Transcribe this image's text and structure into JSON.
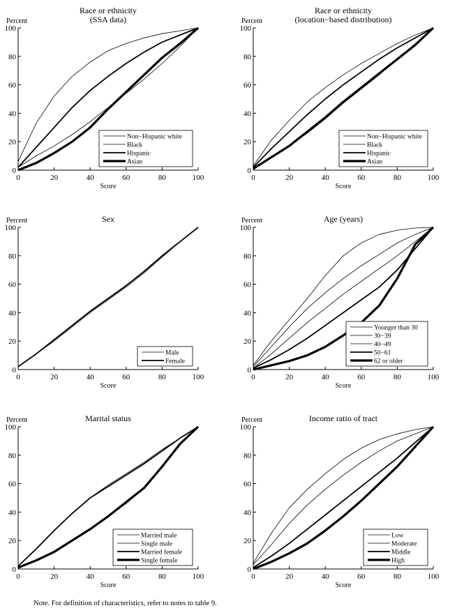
{
  "note": "Note. For definition of characteristics, refer to notes to table 9.",
  "chart_data": [
    {
      "type": "line",
      "title": [
        "Race or ethnicity",
        "(SSA data)"
      ],
      "xlabel": "Score",
      "ylabel": "Percent",
      "xlim": [
        0,
        100
      ],
      "ylim": [
        0,
        100
      ],
      "xticks": [
        0,
        20,
        40,
        60,
        80,
        100
      ],
      "yticks": [
        0,
        20,
        40,
        60,
        80,
        100
      ],
      "legend": "bottom-right",
      "grid": false,
      "x": [
        0,
        10,
        20,
        30,
        40,
        50,
        60,
        70,
        80,
        90,
        100
      ],
      "series": [
        {
          "name": "Non−Hispanic white",
          "values": [
            6,
            33,
            52,
            66,
            76,
            84,
            89,
            93,
            96,
            98,
            100
          ],
          "weight": "thin"
        },
        {
          "name": "Black",
          "values": [
            2,
            10,
            17,
            25,
            34,
            44,
            54,
            64,
            75,
            87,
            100
          ],
          "weight": "thin"
        },
        {
          "name": "Hispanic",
          "values": [
            2,
            16,
            30,
            44,
            56,
            66,
            75,
            83,
            90,
            95,
            100
          ],
          "weight": "medium"
        },
        {
          "name": "Asian",
          "values": [
            0,
            5,
            12,
            20,
            30,
            43,
            55,
            67,
            79,
            89,
            100
          ],
          "weight": "thick"
        }
      ]
    },
    {
      "type": "line",
      "title": [
        "Race or ethnicity",
        "(location−based distribution)"
      ],
      "xlabel": "Score",
      "ylabel": "Percent",
      "xlim": [
        0,
        100
      ],
      "ylim": [
        0,
        100
      ],
      "xticks": [
        0,
        20,
        40,
        60,
        80,
        100
      ],
      "yticks": [
        0,
        20,
        40,
        60,
        80,
        100
      ],
      "legend": "bottom-right",
      "grid": false,
      "x": [
        0,
        10,
        20,
        30,
        40,
        50,
        60,
        70,
        80,
        90,
        100
      ],
      "series": [
        {
          "name": "Non−Hispanic white",
          "values": [
            3,
            21,
            35,
            48,
            58,
            67,
            75,
            82,
            89,
            95,
            100
          ],
          "weight": "thin"
        },
        {
          "name": "Black",
          "values": [
            1,
            9,
            17,
            26,
            36,
            47,
            57,
            67,
            78,
            89,
            100
          ],
          "weight": "thin"
        },
        {
          "name": "Hispanic",
          "values": [
            2,
            15,
            27,
            39,
            50,
            60,
            69,
            78,
            86,
            93,
            100
          ],
          "weight": "medium"
        },
        {
          "name": "Asian",
          "values": [
            1,
            9,
            17,
            27,
            37,
            48,
            58,
            68,
            78,
            88,
            100
          ],
          "weight": "thick"
        }
      ]
    },
    {
      "type": "line",
      "title": [
        "Sex"
      ],
      "xlabel": "Score",
      "ylabel": "Percent",
      "xlim": [
        0,
        100
      ],
      "ylim": [
        0,
        100
      ],
      "xticks": [
        0,
        20,
        40,
        60,
        80,
        100
      ],
      "yticks": [
        0,
        20,
        40,
        60,
        80,
        100
      ],
      "legend": "bottom-right",
      "grid": false,
      "x": [
        0,
        10,
        20,
        30,
        40,
        50,
        60,
        70,
        80,
        90,
        100
      ],
      "series": [
        {
          "name": "Male",
          "values": [
            2,
            11,
            20,
            30,
            40,
            49,
            58,
            68,
            79,
            90,
            100
          ],
          "weight": "thin"
        },
        {
          "name": "Female",
          "values": [
            2,
            11,
            21,
            31,
            41,
            50,
            59,
            69,
            80,
            90,
            100
          ],
          "weight": "medium"
        }
      ]
    },
    {
      "type": "line",
      "title": [
        "Age (years)"
      ],
      "xlabel": "Score",
      "ylabel": "Percent",
      "xlim": [
        0,
        100
      ],
      "ylim": [
        0,
        100
      ],
      "xticks": [
        0,
        20,
        40,
        60,
        80,
        100
      ],
      "yticks": [
        0,
        20,
        40,
        60,
        80,
        100
      ],
      "legend": "bottom-right",
      "grid": false,
      "x": [
        0,
        10,
        20,
        30,
        40,
        50,
        60,
        70,
        80,
        90,
        100
      ],
      "series": [
        {
          "name": "Younger than 30",
          "values": [
            3,
            20,
            35,
            50,
            66,
            80,
            89,
            95,
            98,
            99.5,
            100
          ],
          "weight": "thin"
        },
        {
          "name": "30−39",
          "values": [
            2,
            16,
            30,
            43,
            54,
            64,
            73,
            81,
            89,
            95,
            100
          ],
          "weight": "thin"
        },
        {
          "name": "40−49",
          "values": [
            1,
            11,
            22,
            33,
            43,
            53,
            62,
            71,
            80,
            90,
            100
          ],
          "weight": "thin"
        },
        {
          "name": "50−61",
          "values": [
            1,
            7,
            14,
            22,
            31,
            40,
            49,
            58,
            70,
            85,
            100
          ],
          "weight": "medium"
        },
        {
          "name": "62 or older",
          "values": [
            0,
            3,
            6,
            10,
            16,
            24,
            33,
            45,
            64,
            88,
            100
          ],
          "weight": "thick"
        }
      ]
    },
    {
      "type": "line",
      "title": [
        "Marital status"
      ],
      "xlabel": "Score",
      "ylabel": "Percent",
      "xlim": [
        0,
        100
      ],
      "ylim": [
        0,
        100
      ],
      "xticks": [
        0,
        20,
        40,
        60,
        80,
        100
      ],
      "yticks": [
        0,
        20,
        40,
        60,
        80,
        100
      ],
      "legend": "bottom-right",
      "grid": false,
      "x": [
        0,
        10,
        20,
        30,
        40,
        50,
        60,
        70,
        80,
        90,
        100
      ],
      "series": [
        {
          "name": "Married male",
          "values": [
            2,
            14,
            27,
            39,
            50,
            59,
            67,
            75,
            84,
            92,
            100
          ],
          "weight": "thin"
        },
        {
          "name": "Single male",
          "values": [
            1,
            6,
            12,
            20,
            28,
            37,
            46,
            57,
            72,
            88,
            100
          ],
          "weight": "thin"
        },
        {
          "name": "Married female",
          "values": [
            2,
            14,
            27,
            39,
            50,
            58,
            66,
            74,
            83,
            92,
            100
          ],
          "weight": "medium"
        },
        {
          "name": "Single female",
          "values": [
            1,
            6,
            12,
            20,
            28,
            37,
            47,
            57,
            72,
            88,
            100
          ],
          "weight": "thick"
        }
      ]
    },
    {
      "type": "line",
      "title": [
        "Income ratio of tract"
      ],
      "xlabel": "Score",
      "ylabel": "Percent",
      "xlim": [
        0,
        100
      ],
      "ylim": [
        0,
        100
      ],
      "xticks": [
        0,
        20,
        40,
        60,
        80,
        100
      ],
      "yticks": [
        0,
        20,
        40,
        60,
        80,
        100
      ],
      "legend": "bottom-right",
      "grid": false,
      "x": [
        0,
        10,
        20,
        30,
        40,
        50,
        60,
        70,
        80,
        90,
        100
      ],
      "series": [
        {
          "name": "Low",
          "values": [
            4,
            25,
            43,
            56,
            67,
            77,
            85,
            91,
            95,
            98,
            100
          ],
          "weight": "thin"
        },
        {
          "name": "Moderate",
          "values": [
            3,
            17,
            32,
            45,
            56,
            66,
            75,
            83,
            90,
            95,
            100
          ],
          "weight": "thin"
        },
        {
          "name": "Middle",
          "values": [
            1,
            9,
            18,
            28,
            38,
            48,
            58,
            68,
            78,
            89,
            100
          ],
          "weight": "medium"
        },
        {
          "name": "High",
          "values": [
            0,
            5,
            11,
            18,
            27,
            37,
            48,
            60,
            72,
            86,
            100
          ],
          "weight": "thick"
        }
      ]
    }
  ]
}
